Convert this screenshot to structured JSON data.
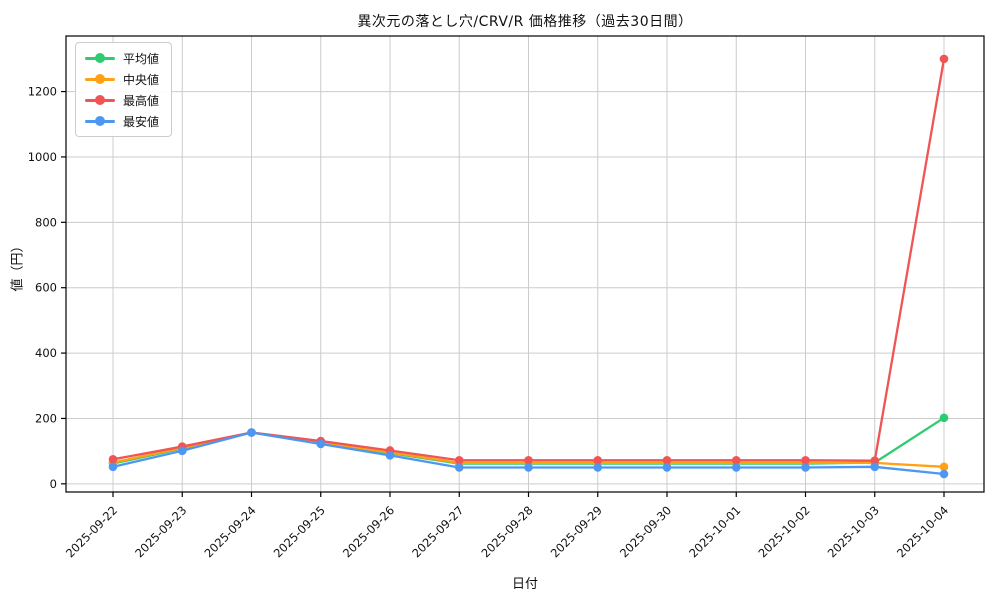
{
  "chart_data": {
    "type": "line",
    "title": "異次元の落とし穴/CRV/R 価格推移（過去30日間）",
    "xlabel": "日付",
    "ylabel": "値（円）",
    "grid": true,
    "legend_position": "upper left",
    "x": [
      "2025-09-22",
      "2025-09-23",
      "2025-09-24",
      "2025-09-25",
      "2025-09-26",
      "2025-09-27",
      "2025-09-28",
      "2025-09-29",
      "2025-09-30",
      "2025-10-01",
      "2025-10-02",
      "2025-10-03",
      "2025-10-04"
    ],
    "yticks": [
      0,
      200,
      400,
      600,
      800,
      1000,
      1200
    ],
    "ylim": [
      -25,
      1370
    ],
    "series": [
      {
        "key": "average",
        "name": "平均値",
        "color": "#2ecc71",
        "values": [
          62,
          108,
          157,
          126,
          94,
          62,
          62,
          62,
          62,
          62,
          62,
          65,
          202
        ]
      },
      {
        "key": "median",
        "name": "中央値",
        "color": "#ffa113",
        "values": [
          65,
          110,
          157,
          127,
          96,
          64,
          64,
          64,
          64,
          64,
          64,
          64,
          52
        ]
      },
      {
        "key": "max",
        "name": "最高値",
        "color": "#f05454",
        "values": [
          75,
          114,
          157,
          131,
          102,
          72,
          72,
          72,
          72,
          72,
          72,
          71,
          1300
        ]
      },
      {
        "key": "min",
        "name": "最安値",
        "color": "#4d97f2",
        "values": [
          52,
          101,
          157,
          122,
          87,
          50,
          50,
          50,
          50,
          50,
          50,
          52,
          30
        ]
      }
    ]
  }
}
